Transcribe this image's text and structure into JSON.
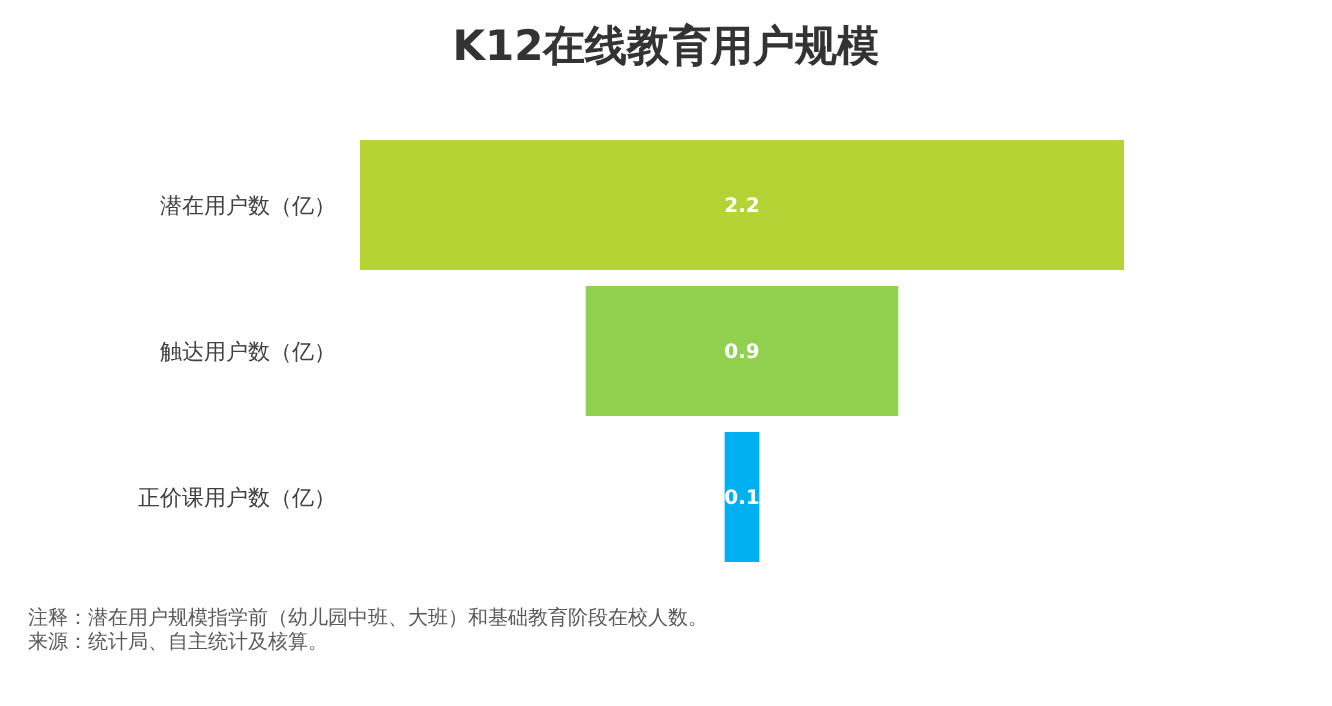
{
  "chart_data": {
    "type": "other",
    "title": "K12在线教育用户规模",
    "categories": [
      "潜在用户数（亿）",
      "触达用户数（亿）",
      "正价课用户数（亿）"
    ],
    "values": [
      2.2,
      0.9,
      0.1
    ],
    "colors": [
      "#b5d334",
      "#92d050",
      "#00b0f0"
    ],
    "data_labels": true,
    "annotations": [
      "注释：潜在用户规模指学前（幼儿园中班、大班）和基础教育阶段在校人数。",
      "来源：统计局、自主统计及核算。"
    ]
  }
}
